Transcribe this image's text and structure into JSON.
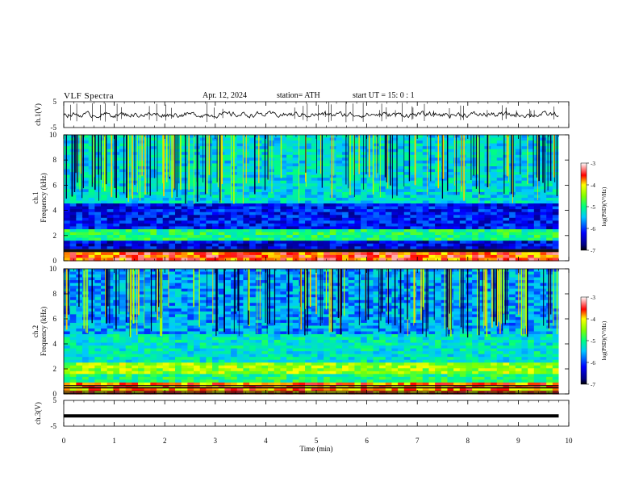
{
  "header": {
    "title": "VLF  Spectra",
    "date": "Apr. 12, 2024",
    "station": "station= ATH",
    "start": "start  UT  =    15: 0   : 1"
  },
  "chart_data": [
    {
      "type": "line",
      "panel": "ch1-waveform",
      "ylabel": "ch.1(V)",
      "yticks": [
        "5",
        "-5"
      ],
      "ylim": [
        -5,
        5
      ],
      "xlim": [
        0,
        10
      ],
      "series": [
        {
          "values": "noisy waveform around 0 V, amplitude about ±1 V, with sparse spikes"
        }
      ]
    },
    {
      "type": "heatmap",
      "panel": "ch1-spectrogram",
      "ylabel": "ch.1\nFrequency  (kHz)",
      "ylabel_lines": [
        "ch.1",
        "Frequency  (kHz)"
      ],
      "yticks": [
        "0",
        "2",
        "4",
        "6",
        "8",
        "10"
      ],
      "ylim": [
        0,
        10
      ],
      "xlim": [
        0,
        10
      ],
      "data_extent_min": 9.8,
      "colorbar": {
        "label": "log(PSD)(V²/Hz)",
        "ticks": [
          "-3",
          "-4",
          "-5",
          "-6",
          "-7"
        ],
        "range": [
          -7,
          -3
        ]
      },
      "bands": [
        {
          "f": [
            0.0,
            0.8
          ],
          "level": -3.6
        },
        {
          "f": [
            0.8,
            1.5
          ],
          "level": -6.4
        },
        {
          "f": [
            1.5,
            2.5
          ],
          "level": -5.0
        },
        {
          "f": [
            2.5,
            4.5
          ],
          "level": -6.3
        },
        {
          "f": [
            4.5,
            10.0
          ],
          "level": -5.4
        }
      ]
    },
    {
      "type": "heatmap",
      "panel": "ch2-spectrogram",
      "ylabel": "ch.2\nFrequency  (kHz)",
      "ylabel_lines": [
        "ch.2",
        "Frequency  (kHz)"
      ],
      "yticks": [
        "0",
        "2",
        "4",
        "6",
        "8",
        "10"
      ],
      "ylim": [
        0,
        10
      ],
      "xlim": [
        0,
        10
      ],
      "data_extent_min": 9.8,
      "colorbar": {
        "label": "log(PSD)(V²/Hz)",
        "ticks": [
          "-3",
          "-4",
          "-5",
          "-6",
          "-7"
        ],
        "range": [
          -7,
          -3
        ]
      },
      "bands": [
        {
          "f": [
            0.0,
            0.8
          ],
          "level": -3.8
        },
        {
          "f": [
            0.8,
            1.6
          ],
          "level": -5.0
        },
        {
          "f": [
            1.6,
            2.4
          ],
          "level": -4.4
        },
        {
          "f": [
            2.4,
            4.8
          ],
          "level": -5.3
        },
        {
          "f": [
            4.8,
            10.0
          ],
          "level": -5.7
        }
      ]
    },
    {
      "type": "line",
      "panel": "ch3-waveform",
      "ylabel": "ch.3(V)",
      "yticks": [
        "5",
        "-5"
      ],
      "ylim": [
        -5,
        5
      ],
      "xlim": [
        0,
        10
      ],
      "series": [
        {
          "values": "flat line at about -1 V"
        }
      ]
    }
  ],
  "xaxis": {
    "label": "Time  (min)",
    "ticks": [
      "0",
      "1",
      "2",
      "3",
      "4",
      "5",
      "6",
      "7",
      "8",
      "9",
      "10"
    ]
  },
  "colors": {
    "spec_low": "#00007f",
    "spec_mid": "#00ffff",
    "spec_high": "#ff0000"
  }
}
